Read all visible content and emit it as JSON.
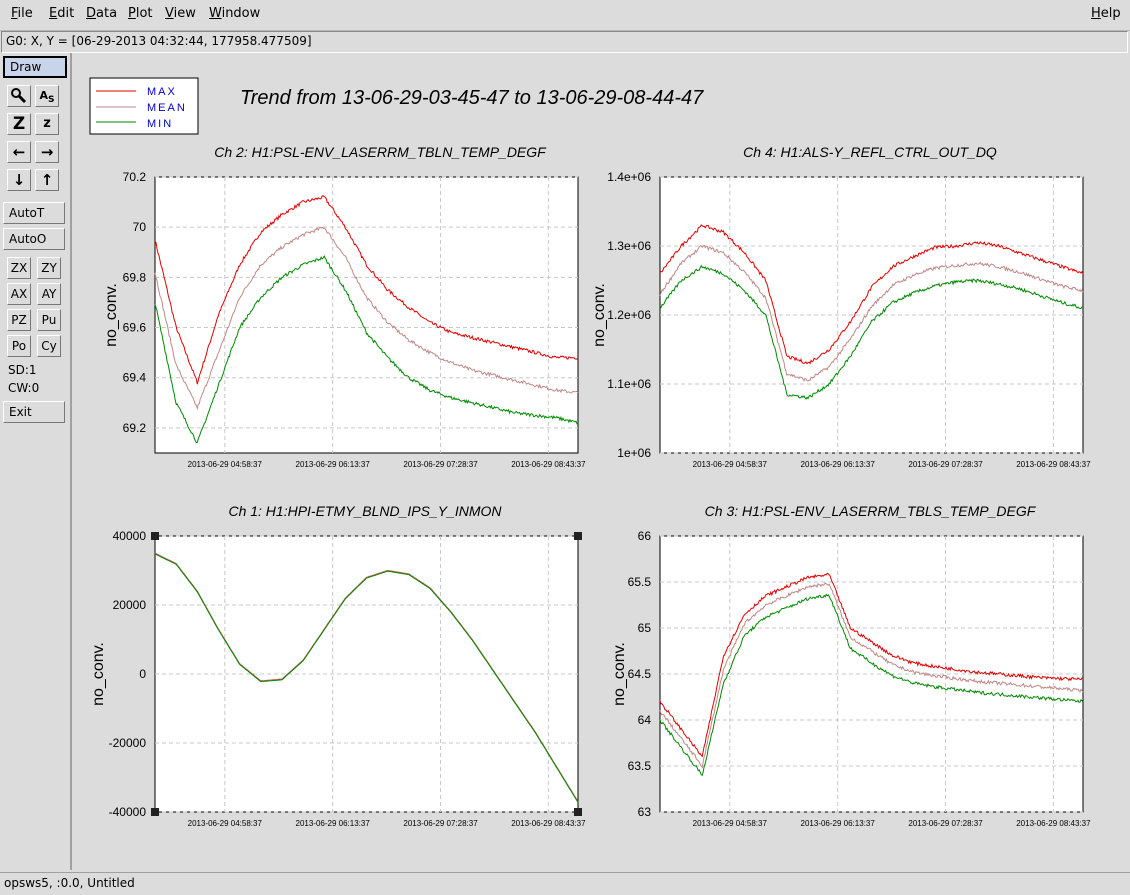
{
  "menu": {
    "file": "File",
    "edit": "Edit",
    "data": "Data",
    "plot": "Plot",
    "view": "View",
    "window": "Window",
    "help": "Help"
  },
  "coord_readout": "G0: X, Y = [06-29-2013 04:32:44, 177958.477509]",
  "sidebar": {
    "draw": "Draw",
    "auto_t": "AutoT",
    "auto_o": "AutoO",
    "zx": "ZX",
    "zy": "ZY",
    "ax": "AX",
    "ay": "AY",
    "pz": "PZ",
    "pu": "Pu",
    "po": "Po",
    "cy": "Cy",
    "sd": "SD:1",
    "cw": "CW:0",
    "exit": "Exit"
  },
  "status": "opsws5, :0.0, Untitled",
  "colors": {
    "max": "#e00000",
    "mean": "#c08888",
    "min": "#008800",
    "title_blue": "#0000cc"
  },
  "legend": {
    "max": "MAX",
    "mean": "MEAN",
    "min": "MIN"
  },
  "title": "Trend from 13-06-29-03-45-47 to 13-06-29-08-44-47",
  "chart_data": [
    {
      "type": "line",
      "title": "Ch 2: H1:PSL-ENV_LASERRM_TBLN_TEMP_DEGF",
      "ylabel": "no_conv.",
      "xticks": [
        "2013-06-29 04:58:37",
        "2013-06-29 06:13:37",
        "2013-06-29 07:28:37",
        "2013-06-29 08:43:37"
      ],
      "yticks": [
        "69.2",
        "69.4",
        "69.6",
        "69.8",
        "70",
        "70.2"
      ],
      "ylim": [
        69.1,
        70.2
      ],
      "x": [
        0,
        0.05,
        0.1,
        0.15,
        0.2,
        0.25,
        0.3,
        0.35,
        0.4,
        0.45,
        0.5,
        0.55,
        0.6,
        0.65,
        0.7,
        0.75,
        0.8,
        0.85,
        0.9,
        0.95,
        1.0
      ],
      "series": [
        {
          "name": "MAX",
          "values": [
            69.95,
            69.6,
            69.38,
            69.65,
            69.85,
            69.98,
            70.05,
            70.1,
            70.12,
            70.0,
            69.85,
            69.75,
            69.68,
            69.62,
            69.58,
            69.56,
            69.54,
            69.52,
            69.5,
            69.48,
            69.48
          ]
        },
        {
          "name": "MEAN",
          "values": [
            69.82,
            69.45,
            69.28,
            69.5,
            69.72,
            69.85,
            69.92,
            69.97,
            70.0,
            69.88,
            69.72,
            69.62,
            69.55,
            69.5,
            69.46,
            69.43,
            69.41,
            69.39,
            69.37,
            69.35,
            69.34
          ]
        },
        {
          "name": "MIN",
          "values": [
            69.7,
            69.3,
            69.14,
            69.37,
            69.6,
            69.72,
            69.8,
            69.85,
            69.88,
            69.75,
            69.58,
            69.48,
            69.4,
            69.35,
            69.32,
            69.3,
            69.28,
            69.26,
            69.25,
            69.24,
            69.22
          ]
        }
      ]
    },
    {
      "type": "line",
      "title": "Ch 4: H1:ALS-Y_REFL_CTRL_OUT_DQ",
      "ylabel": "no_conv.",
      "xticks": [
        "2013-06-29 04:58:37",
        "2013-06-29 06:13:37",
        "2013-06-29 07:28:37",
        "2013-06-29 08:43:37"
      ],
      "yticks": [
        "1e+06",
        "1.1e+06",
        "1.2e+06",
        "1.3e+06",
        "1.4e+06"
      ],
      "ylim": [
        1000000,
        1400000
      ],
      "x": [
        0,
        0.05,
        0.1,
        0.15,
        0.2,
        0.25,
        0.3,
        0.35,
        0.4,
        0.45,
        0.5,
        0.55,
        0.6,
        0.65,
        0.7,
        0.75,
        0.8,
        0.85,
        0.9,
        0.95,
        1.0
      ],
      "series": [
        {
          "name": "MAX",
          "values": [
            1260000,
            1300000,
            1330000,
            1320000,
            1290000,
            1250000,
            1140000,
            1130000,
            1150000,
            1190000,
            1240000,
            1270000,
            1285000,
            1298000,
            1300000,
            1305000,
            1300000,
            1290000,
            1280000,
            1270000,
            1260000
          ]
        },
        {
          "name": "MEAN",
          "values": [
            1230000,
            1275000,
            1300000,
            1290000,
            1262000,
            1225000,
            1115000,
            1105000,
            1125000,
            1165000,
            1212000,
            1243000,
            1258000,
            1268000,
            1272000,
            1275000,
            1270000,
            1262000,
            1252000,
            1242000,
            1235000
          ]
        },
        {
          "name": "MIN",
          "values": [
            1210000,
            1250000,
            1270000,
            1260000,
            1235000,
            1200000,
            1085000,
            1080000,
            1100000,
            1140000,
            1190000,
            1218000,
            1232000,
            1242000,
            1248000,
            1250000,
            1245000,
            1238000,
            1228000,
            1218000,
            1210000
          ]
        }
      ]
    },
    {
      "type": "line",
      "title": "Ch 1: H1:HPI-ETMY_BLND_IPS_Y_INMON",
      "ylabel": "no_conv.",
      "xticks": [
        "2013-06-29 04:58:37",
        "2013-06-29 06:13:37",
        "2013-06-29 07:28:37",
        "2013-06-29 08:43:37"
      ],
      "yticks": [
        "-40000",
        "-20000",
        "0",
        "20000",
        "40000"
      ],
      "ylim": [
        -40000,
        40000
      ],
      "x": [
        0,
        0.05,
        0.1,
        0.15,
        0.2,
        0.25,
        0.3,
        0.35,
        0.4,
        0.45,
        0.5,
        0.55,
        0.6,
        0.65,
        0.7,
        0.75,
        0.8,
        0.85,
        0.9,
        0.95,
        1.0
      ],
      "series": [
        {
          "name": "MAX",
          "values": [
            35000,
            32000,
            24000,
            13000,
            3000,
            -2000,
            -1500,
            4000,
            13000,
            22000,
            28000,
            30000,
            29000,
            25000,
            18000,
            10000,
            1000,
            -8000,
            -17000,
            -27000,
            -37000
          ]
        },
        {
          "name": "MEAN",
          "values": [
            34900,
            31900,
            23900,
            12900,
            2900,
            -2100,
            -1600,
            3900,
            12900,
            21900,
            27900,
            29900,
            28900,
            24900,
            17900,
            9900,
            900,
            -8100,
            -17100,
            -27100,
            -37100
          ]
        },
        {
          "name": "MIN",
          "values": [
            34800,
            31800,
            23800,
            12800,
            2800,
            -2200,
            -1700,
            3800,
            12800,
            21800,
            27800,
            29800,
            28800,
            24800,
            17800,
            9800,
            800,
            -8200,
            -17200,
            -27200,
            -37200
          ]
        }
      ]
    },
    {
      "type": "line",
      "title": "Ch 3: H1:PSL-ENV_LASERRM_TBLS_TEMP_DEGF",
      "ylabel": "no_conv.",
      "xticks": [
        "2013-06-29 04:58:37",
        "2013-06-29 06:13:37",
        "2013-06-29 07:28:37",
        "2013-06-29 08:43:37"
      ],
      "yticks": [
        "63",
        "63.5",
        "64",
        "64.5",
        "65",
        "65.5",
        "66"
      ],
      "ylim": [
        63,
        66
      ],
      "x": [
        0,
        0.05,
        0.1,
        0.15,
        0.2,
        0.25,
        0.3,
        0.35,
        0.4,
        0.45,
        0.5,
        0.55,
        0.6,
        0.65,
        0.7,
        0.75,
        0.8,
        0.85,
        0.9,
        0.95,
        1.0
      ],
      "series": [
        {
          "name": "MAX",
          "values": [
            64.2,
            63.9,
            63.6,
            64.7,
            65.15,
            65.35,
            65.45,
            65.55,
            65.58,
            65.0,
            64.85,
            64.7,
            64.62,
            64.58,
            64.55,
            64.52,
            64.5,
            64.48,
            64.46,
            64.45,
            64.44
          ]
        },
        {
          "name": "MEAN",
          "values": [
            64.1,
            63.8,
            63.5,
            64.55,
            65.05,
            65.25,
            65.35,
            65.45,
            65.48,
            64.9,
            64.75,
            64.6,
            64.52,
            64.48,
            64.45,
            64.42,
            64.4,
            64.38,
            64.36,
            64.34,
            64.32
          ]
        },
        {
          "name": "MIN",
          "values": [
            64.0,
            63.7,
            63.4,
            64.4,
            64.92,
            65.12,
            65.22,
            65.32,
            65.36,
            64.78,
            64.62,
            64.48,
            64.4,
            64.36,
            64.33,
            64.3,
            64.28,
            64.26,
            64.24,
            64.22,
            64.2
          ]
        }
      ]
    }
  ]
}
